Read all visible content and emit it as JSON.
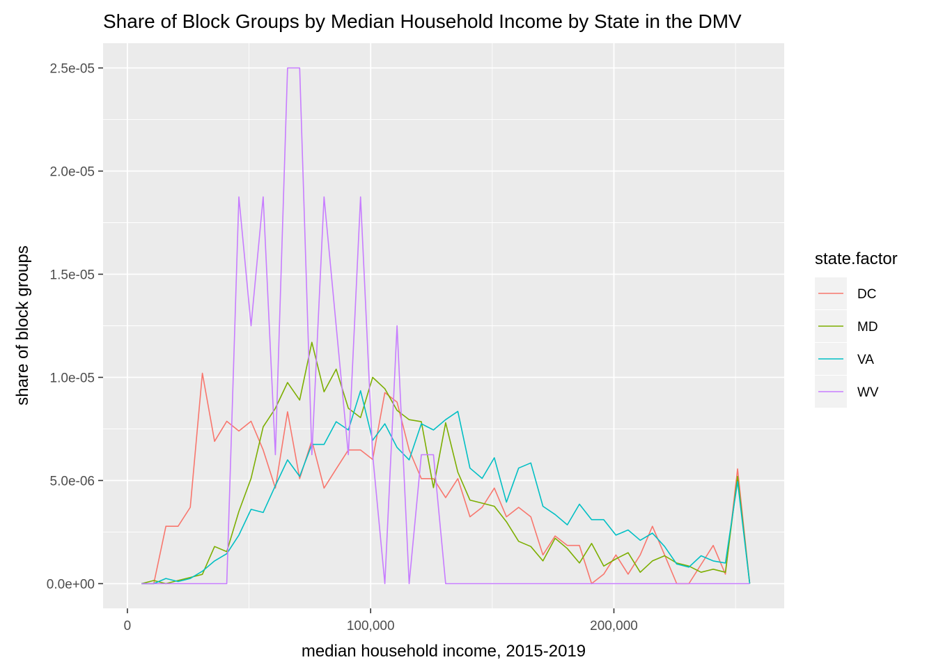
{
  "chart_data": {
    "type": "line",
    "title": "Share of Block Groups by Median Household Income by State in the DMV",
    "xlabel": "median household income, 2015-2019",
    "ylabel": "share of block groups",
    "xlim": [
      -10000,
      270000
    ],
    "ylim": [
      -1.2e-06,
      2.62e-05
    ],
    "x_ticks": [
      0,
      100000,
      200000
    ],
    "x_tick_labels": [
      "0",
      "100,000",
      "200,000"
    ],
    "y_ticks": [
      0,
      5e-06,
      1e-05,
      1.5e-05,
      2e-05,
      2.5e-05
    ],
    "y_tick_labels": [
      "0.0e+00",
      "5.0e-06",
      "1.0e-05",
      "1.5e-05",
      "2.0e-05",
      "2.5e-05"
    ],
    "grid": true,
    "legend": {
      "title": "state.factor",
      "position": "right"
    },
    "x": [
      5833,
      10833,
      15833,
      20833,
      25833,
      30833,
      35833,
      40833,
      45833,
      50833,
      55833,
      60833,
      65833,
      70833,
      75833,
      80833,
      85833,
      90833,
      95833,
      100833,
      105833,
      110833,
      115833,
      120833,
      125833,
      130833,
      135833,
      140833,
      145833,
      150833,
      155833,
      160833,
      165833,
      170833,
      175833,
      180833,
      185833,
      190833,
      195833,
      200833,
      205833,
      210833,
      215833,
      220833,
      225833,
      230833,
      235833,
      240833,
      245833,
      250833,
      255833
    ],
    "series": [
      {
        "name": "DC",
        "color": "#F8766D",
        "values": [
          0,
          0,
          2.78e-06,
          2.78e-06,
          3.7e-06,
          1.02e-05,
          6.9e-06,
          7.87e-06,
          7.4e-06,
          7.87e-06,
          6.48e-06,
          4.63e-06,
          8.33e-06,
          5.09e-06,
          6.94e-06,
          4.63e-06,
          5.56e-06,
          6.48e-06,
          6.48e-06,
          6.02e-06,
          9.26e-06,
          8.8e-06,
          6.48e-06,
          5.09e-06,
          5.09e-06,
          4.17e-06,
          5.09e-06,
          3.24e-06,
          3.7e-06,
          4.63e-06,
          3.24e-06,
          3.7e-06,
          3.24e-06,
          1.39e-06,
          2.31e-06,
          1.85e-06,
          1.85e-06,
          0,
          4.6e-07,
          1.39e-06,
          4.6e-07,
          1.39e-06,
          2.78e-06,
          1.39e-06,
          0,
          0,
          9.3e-07,
          1.85e-06,
          4.6e-07,
          5.56e-06,
          0
        ]
      },
      {
        "name": "MD",
        "color": "#7CAE00",
        "values": [
          0,
          1.5e-07,
          0,
          1.5e-07,
          3e-07,
          4.5e-07,
          1.8e-06,
          1.55e-06,
          3.5e-06,
          5.1e-06,
          7.6e-06,
          8.5e-06,
          9.75e-06,
          8.9e-06,
          1.17e-05,
          9.3e-06,
          1.04e-05,
          8.5e-06,
          8.05e-06,
          1e-05,
          9.45e-06,
          8.4e-06,
          7.95e-06,
          7.85e-06,
          4.65e-06,
          7.8e-06,
          5.4e-06,
          4.05e-06,
          3.9e-06,
          3.75e-06,
          3e-06,
          2.05e-06,
          1.8e-06,
          1.1e-06,
          2.2e-06,
          1.7e-06,
          1e-06,
          1.95e-06,
          8.5e-07,
          1.2e-06,
          1.5e-06,
          5.5e-07,
          1.1e-06,
          1.35e-06,
          1e-06,
          8.5e-07,
          5.5e-07,
          7e-07,
          5.5e-07,
          5.2e-06,
          0
        ]
      },
      {
        "name": "VA",
        "color": "#00BFC4",
        "values": [
          0,
          0,
          2.5e-07,
          1e-07,
          2.5e-07,
          6e-07,
          1.1e-06,
          1.45e-06,
          2.35e-06,
          3.6e-06,
          3.45e-06,
          4.75e-06,
          6e-06,
          5.2e-06,
          6.75e-06,
          6.75e-06,
          7.85e-06,
          7.45e-06,
          9.35e-06,
          6.95e-06,
          7.75e-06,
          6.6e-06,
          6e-06,
          7.75e-06,
          7.45e-06,
          7.95e-06,
          8.35e-06,
          5.6e-06,
          5.1e-06,
          6.1e-06,
          3.95e-06,
          5.6e-06,
          5.85e-06,
          3.75e-06,
          3.35e-06,
          2.85e-06,
          3.85e-06,
          3.1e-06,
          3.1e-06,
          2.35e-06,
          2.6e-06,
          2.1e-06,
          2.45e-06,
          1.8e-06,
          9.5e-07,
          8e-07,
          1.35e-06,
          1.1e-06,
          1e-06,
          4.95e-06,
          0
        ]
      },
      {
        "name": "WV",
        "color": "#C77CFF",
        "values": [
          0,
          0,
          0,
          0,
          0,
          0,
          0,
          0,
          1.875e-05,
          1.25e-05,
          1.875e-05,
          6.25e-06,
          2.5e-05,
          2.5e-05,
          6.25e-06,
          1.875e-05,
          1.25e-05,
          6.25e-06,
          1.875e-05,
          6.25e-06,
          0,
          1.25e-05,
          0,
          6.25e-06,
          6.25e-06,
          0,
          0,
          0,
          0,
          0,
          0,
          0,
          0,
          0,
          0,
          0,
          0,
          0,
          0,
          0,
          0,
          0,
          0,
          0,
          0,
          0,
          0,
          0,
          0,
          0,
          0
        ]
      }
    ]
  }
}
